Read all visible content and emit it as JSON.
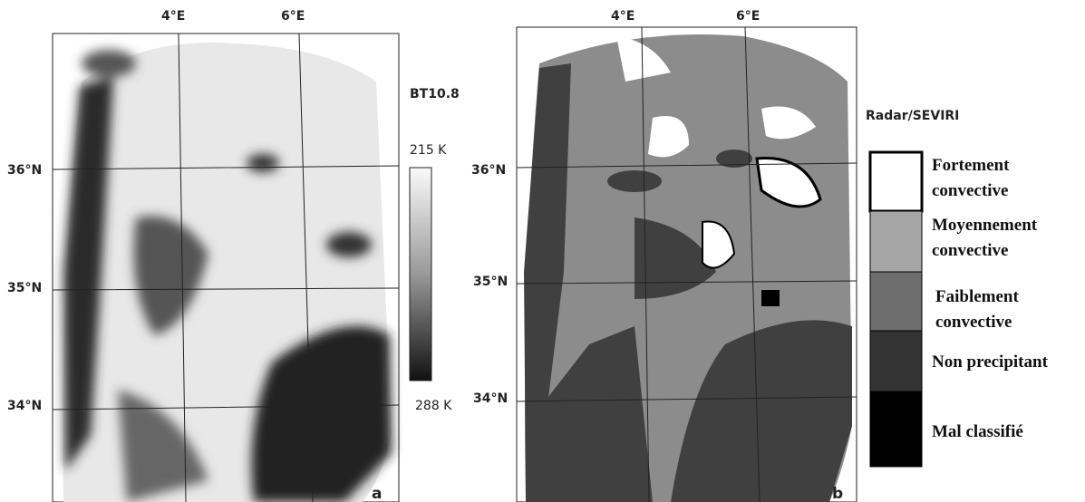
{
  "panel_a": {
    "lon_labels": [
      "4°E",
      "6°E"
    ],
    "lat_labels": [
      "36°N",
      "35°N",
      "34°N"
    ],
    "colorbar_title": "BT10.8",
    "colorbar_top": "215 K",
    "colorbar_bottom": "288 K",
    "panel_label": "a"
  },
  "panel_b": {
    "lon_labels": [
      "4°E",
      "6°E"
    ],
    "lat_labels": [
      "36°N",
      "35°N",
      "34°N"
    ],
    "legend_title": "Radar/SEVIRI",
    "panel_label": "b",
    "legend": [
      {
        "lines": [
          "Fortement",
          "convective"
        ]
      },
      {
        "lines": [
          "Moyennement",
          "convective"
        ]
      },
      {
        "lines": [
          "Faiblement",
          "convective"
        ]
      },
      {
        "lines": [
          "Non precipitant"
        ]
      },
      {
        "lines": [
          "Mal classifié"
        ]
      }
    ]
  }
}
